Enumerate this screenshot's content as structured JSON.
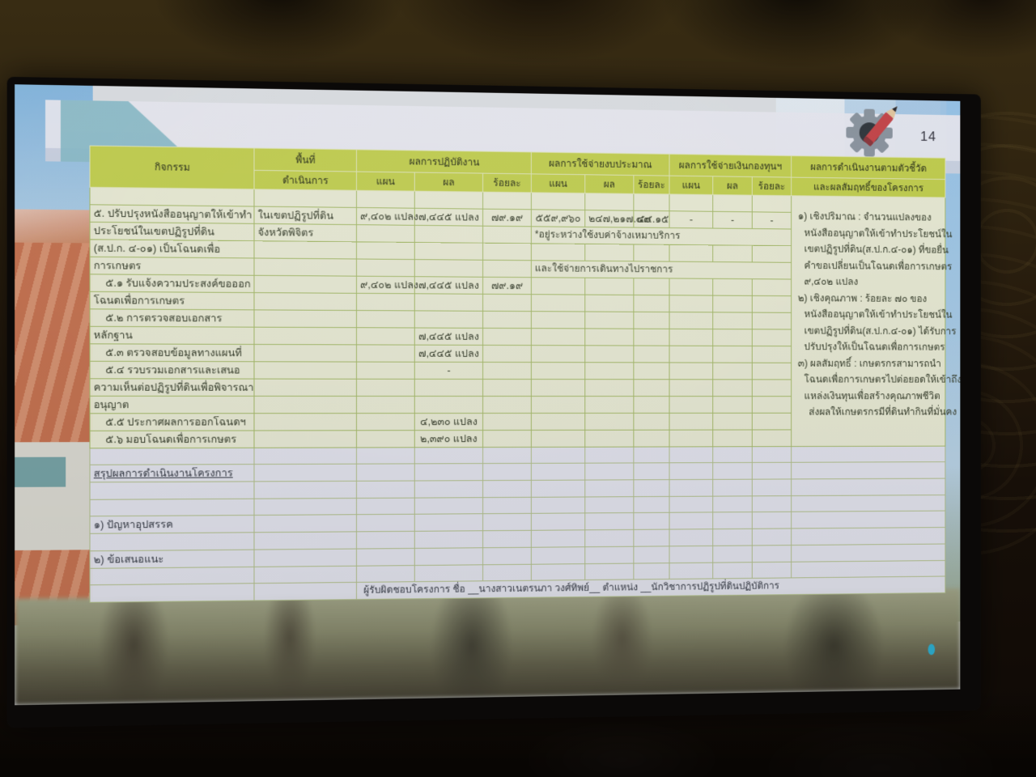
{
  "page_number": "14",
  "slide": {
    "table": {
      "headers": {
        "activity": "กิจกรรม",
        "area_line1": "พื้นที่",
        "area_line2": "ดำเนินการ",
        "performance": "ผลการปฏิบัติงาน",
        "budget": "ผลการใช้จ่ายงบประมาณ",
        "fund": "ผลการใช้จ่ายเงินกองทุนฯ",
        "kpi_line1": "ผลการดำเนินงานตามตัวชี้วัด",
        "kpi_line2": "และผลสัมฤทธิ์ของโครงการ",
        "plan": "แผน",
        "result": "ผล",
        "percent": "ร้อยละ"
      },
      "kpi_rowspan": 15,
      "kpi_lines": [
        {
          "t": "๑) เชิงปริมาณ : จำนวนแปลงของ",
          "i": 0
        },
        {
          "t": "หนังสืออนุญาตให้เข้าทำประโยชน์ใน",
          "i": 1
        },
        {
          "t": "เขตปฏิรูปที่ดิน(ส.ป.ก.๔-๐๑) ที่ขอยื่น",
          "i": 1
        },
        {
          "t": "คำขอเปลี่ยนเป็นโฉนดเพื่อการเกษตร",
          "i": 1
        },
        {
          "t": "๙,๔๐๒ แปลง",
          "i": 1
        },
        {
          "t": "๒) เชิงคุณภาพ : ร้อยละ ๗๐ ของ",
          "i": 0
        },
        {
          "t": "หนังสืออนุญาตให้เข้าทำประโยชน์ใน",
          "i": 1
        },
        {
          "t": "เขตปฏิรูปที่ดิน(ส.ป.ก.๔-๐๑) ได้รับการ",
          "i": 1
        },
        {
          "t": "ปรับปรุงให้เป็นโฉนดเพื่อการเกษตร",
          "i": 1
        },
        {
          "t": "๓) ผลสัมฤทธิ์ : เกษตรกรสามารถนำ",
          "i": 0
        },
        {
          "t": "โฉนดเพื่อการเกษตรไปต่อยอดให้เข้าถึง",
          "i": 1
        },
        {
          "t": "แหล่งเงินทุนเพื่อสร้างคุณภาพชีวิต",
          "i": 1
        },
        {
          "t": "ส่งผลให้เกษตรกรมีที่ดินทำกินที่มั่นคง",
          "i": 2
        }
      ],
      "rows": [
        {
          "s": "g",
          "cells": []
        },
        {
          "s": "g",
          "cells": [
            {
              "col": 1,
              "t": "๕. ปรับปรุงหนังสืออนุญาตให้เข้าทำ"
            },
            {
              "col": 2,
              "t": "ในเขตปฏิรูปที่ดิน"
            },
            {
              "col": 3,
              "t": "๙,๔๐๒ แปลง"
            },
            {
              "col": 4,
              "t": "๗,๔๔๕ แปลง"
            },
            {
              "col": 5,
              "t": "๗๙.๑๙"
            },
            {
              "col": 6,
              "t": "๕๕๙,๙๖๐"
            },
            {
              "col": 7,
              "t": "๒๔๗,๒๑๗.๔๙"
            },
            {
              "col": 8,
              "t": "๔๔.๑๕"
            },
            {
              "col": 9,
              "t": "-"
            },
            {
              "col": 10,
              "t": "-"
            },
            {
              "col": 11,
              "t": "-"
            }
          ]
        },
        {
          "s": "g",
          "cells": [
            {
              "col": 1,
              "t": "ประโยชน์ในเขตปฏิรูปที่ดิน"
            },
            {
              "col": 2,
              "t": "จังหวัดพิจิตร"
            },
            {
              "col": 6,
              "span": 6,
              "cls": "note",
              "t": "*อยู่ระหว่างใช้งบค่าจ้างเหมาบริการ"
            }
          ]
        },
        {
          "s": "g",
          "cells": [
            {
              "col": 1,
              "t": "(ส.ป.ก. ๔-๐๑) เป็นโฉนดเพื่อ"
            }
          ]
        },
        {
          "s": "g",
          "cells": [
            {
              "col": 1,
              "t": "การเกษตร"
            },
            {
              "col": 6,
              "span": 6,
              "cls": "note",
              "t": "และใช้จ่ายการเดินทางไปราชการ"
            }
          ]
        },
        {
          "s": "g",
          "cells": [
            {
              "col": 1,
              "cls": "ind",
              "t": "๕.๑ รับแจ้งความประสงค์ขอออก"
            },
            {
              "col": 3,
              "t": "๙,๔๐๒ แปลง"
            },
            {
              "col": 4,
              "t": "๗,๔๔๕ แปลง"
            },
            {
              "col": 5,
              "t": "๗๙.๑๙"
            }
          ]
        },
        {
          "s": "g",
          "cells": [
            {
              "col": 1,
              "t": "โฉนดเพื่อการเกษตร"
            }
          ]
        },
        {
          "s": "g",
          "cells": [
            {
              "col": 1,
              "cls": "ind",
              "t": "๕.๒ การตรวจสอบเอกสาร"
            }
          ]
        },
        {
          "s": "g",
          "cells": [
            {
              "col": 1,
              "t": "หลักฐาน"
            },
            {
              "col": 4,
              "t": "๗,๔๔๕ แปลง"
            }
          ]
        },
        {
          "s": "g",
          "cells": [
            {
              "col": 1,
              "cls": "ind",
              "t": "๕.๓ ตรวจสอบข้อมูลทางแผนที่"
            },
            {
              "col": 4,
              "t": "๗,๔๔๕ แปลง"
            }
          ]
        },
        {
          "s": "g",
          "cells": [
            {
              "col": 1,
              "cls": "ind",
              "t": "๕.๔ รวบรวมเอกสารและเสนอ"
            },
            {
              "col": 4,
              "t": "-"
            }
          ]
        },
        {
          "s": "g",
          "cells": [
            {
              "col": 1,
              "t": "ความเห็นต่อปฏิรูปที่ดินเพื่อพิจารณา"
            }
          ]
        },
        {
          "s": "g",
          "cells": [
            {
              "col": 1,
              "t": "อนุญาต"
            }
          ]
        },
        {
          "s": "g",
          "cells": [
            {
              "col": 1,
              "cls": "ind",
              "t": "๕.๕ ประกาศผลการออกโฉนดฯ"
            },
            {
              "col": 4,
              "t": "๔,๒๓๐ แปลง"
            }
          ]
        },
        {
          "s": "g",
          "cells": [
            {
              "col": 1,
              "cls": "ind",
              "t": "๕.๖ มอบโฉนดเพื่อการเกษตร"
            },
            {
              "col": 4,
              "t": "๒,๓๙๐ แปลง"
            }
          ]
        },
        {
          "s": "l",
          "cells": []
        },
        {
          "s": "l",
          "cells": [
            {
              "col": 1,
              "cls": "ul",
              "t": "สรุปผลการดำเนินงานโครงการ"
            }
          ]
        },
        {
          "s": "l",
          "cells": []
        },
        {
          "s": "l",
          "cells": []
        },
        {
          "s": "l",
          "cells": [
            {
              "col": 1,
              "t": "๑) ปัญหาอุปสรรค"
            }
          ]
        },
        {
          "s": "l",
          "cells": []
        },
        {
          "s": "l",
          "cells": [
            {
              "col": 1,
              "t": "๒) ข้อเสนอแนะ"
            }
          ]
        },
        {
          "s": "l",
          "cells": []
        },
        {
          "s": "l",
          "cells": [
            {
              "col": 3,
              "span": 10,
              "cls": "footer",
              "t": "ผู้รับผิดชอบโครงการ  ชื่อ __นางสาวเนตรนภา วงศ์ทิพย์__  ตำแหน่ง __นักวิชาการปฏิรูปที่ดินปฏิบัติการ"
            }
          ]
        }
      ]
    }
  },
  "colors": {
    "header_green": "#c6d353",
    "body_green": "#edf0d8",
    "lavender_section": "#e7e8f1",
    "grid_green": "#aabf6e",
    "banner_triangle_teal": "#8bbecb",
    "pencil_red": "#c9494d",
    "gear_gray": "#8f99a4"
  }
}
